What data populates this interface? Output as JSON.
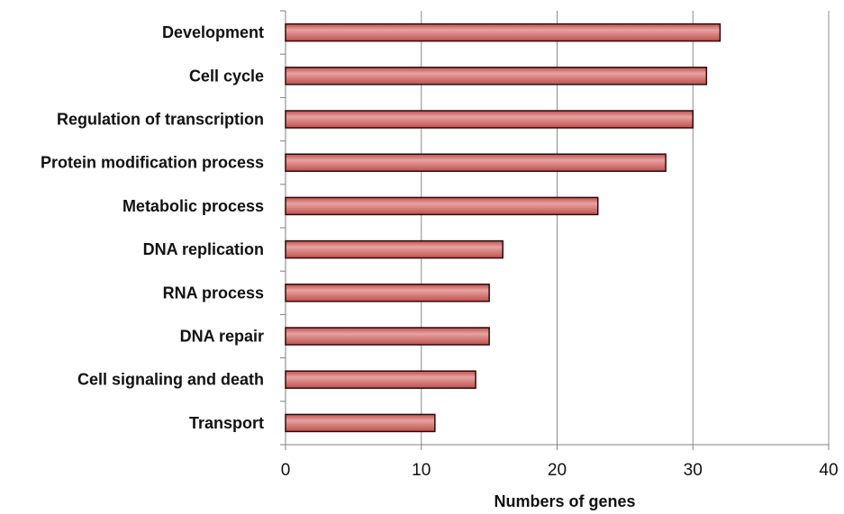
{
  "chart_data": {
    "type": "bar",
    "orientation": "horizontal",
    "title": "",
    "xlabel": "Numbers of genes",
    "ylabel": "",
    "xlim": [
      0,
      40
    ],
    "x_ticks": [
      0,
      10,
      20,
      30,
      40
    ],
    "grid": "vertical",
    "legend": "none",
    "categories": [
      "Development",
      "Cell cycle",
      "Regulation of transcription",
      "Protein modification process",
      "Metabolic process",
      "DNA replication",
      "RNA process",
      "DNA repair",
      "Cell signaling and death",
      "Transport"
    ],
    "values": [
      32,
      31,
      30,
      28,
      23,
      16,
      15,
      15,
      14,
      11
    ],
    "colors": {
      "bar_fill": "#c0504d",
      "bar_highlight": "#e6a3a1",
      "bar_edge": "#2b0a0a",
      "grid": "#8c8c8c",
      "axis": "#7f7f7f"
    }
  }
}
